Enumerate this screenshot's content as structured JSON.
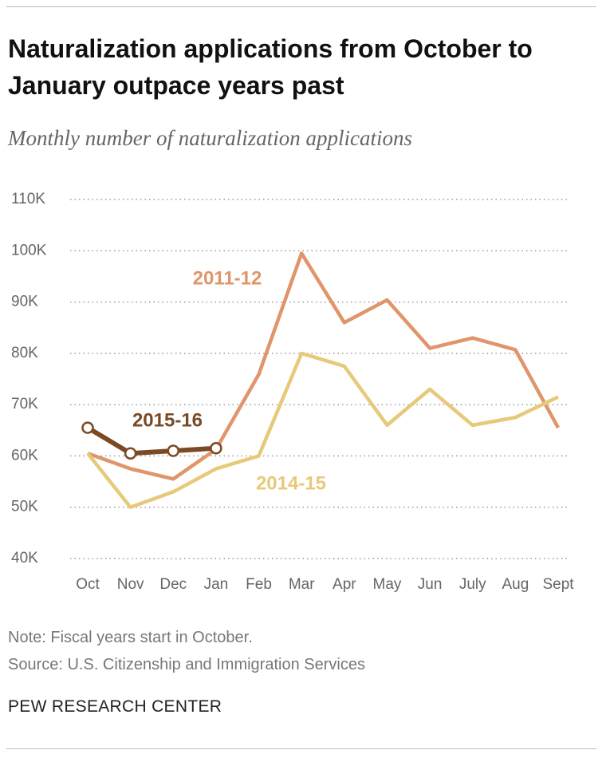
{
  "chart_data": {
    "type": "line",
    "title": "Naturalization applications from October to January outpace years past",
    "subtitle": "Monthly number of naturalization applications",
    "categories": [
      "Oct",
      "Nov",
      "Dec",
      "Jan",
      "Feb",
      "Mar",
      "Apr",
      "May",
      "Jun",
      "July",
      "Aug",
      "Sept"
    ],
    "series": [
      {
        "name": "2011-12",
        "color": "#e0956a",
        "values": [
          60500,
          57500,
          55500,
          61300,
          75900,
          99500,
          86000,
          90400,
          81000,
          83000,
          80700,
          65500
        ]
      },
      {
        "name": "2014-15",
        "color": "#e7c97a",
        "values": [
          60500,
          50000,
          53000,
          57500,
          60000,
          80000,
          77500,
          66000,
          73000,
          66000,
          67500,
          71500
        ]
      },
      {
        "name": "2015-16",
        "color": "#7a4a25",
        "markers": true,
        "values": [
          65500,
          60500,
          61000,
          61500,
          null,
          null,
          null,
          null,
          null,
          null,
          null,
          null
        ]
      }
    ],
    "ylim": [
      40000,
      110000
    ],
    "yticks": [
      {
        "value": 40000,
        "label": "40K"
      },
      {
        "value": 50000,
        "label": "50K"
      },
      {
        "value": 60000,
        "label": "60K"
      },
      {
        "value": 70000,
        "label": "70K"
      },
      {
        "value": 80000,
        "label": "80K"
      },
      {
        "value": 90000,
        "label": "90K"
      },
      {
        "value": 100000,
        "label": "100K"
      },
      {
        "value": 110000,
        "label": "110K"
      }
    ],
    "grid": true,
    "note": "Note: Fiscal years start in October.",
    "source": "Source: U.S. Citizenship and Immigration Services",
    "credit": "PEW RESEARCH CENTER"
  }
}
